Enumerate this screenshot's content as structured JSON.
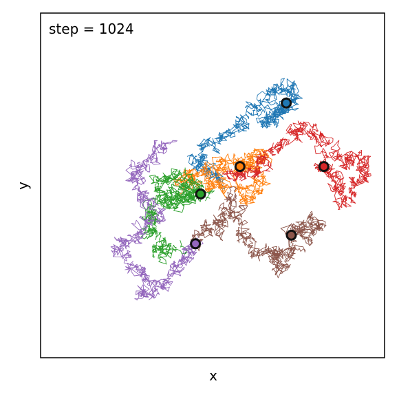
{
  "chart_data": {
    "type": "line",
    "xlabel": "x",
    "ylabel": "y",
    "annotation": "step = 1024",
    "xlim": [
      -1.0,
      1.0
    ],
    "ylim": [
      -1.0,
      1.0
    ],
    "axis_ticks": false,
    "grid": false,
    "legend": "none",
    "walk_steps": 1024,
    "series": [
      {
        "color": "#1f77b4",
        "path": [
          [
            0.04,
            0.04
          ],
          [
            -0.02,
            0.08
          ],
          [
            -0.1,
            0.14
          ],
          [
            -0.04,
            0.2
          ],
          [
            0.06,
            0.28
          ],
          [
            0.16,
            0.34
          ],
          [
            0.24,
            0.42
          ],
          [
            0.32,
            0.52
          ],
          [
            0.4,
            0.58
          ],
          [
            0.48,
            0.54
          ],
          [
            0.44,
            0.46
          ],
          [
            0.36,
            0.4
          ],
          [
            0.3,
            0.36
          ],
          [
            0.38,
            0.42
          ],
          [
            0.43,
            0.48
          ]
        ],
        "final": [
          0.43,
          0.48
        ]
      },
      {
        "color": "#ff7f0e",
        "path": [
          [
            0.16,
            0.1
          ],
          [
            0.08,
            0.14
          ],
          [
            -0.02,
            0.1
          ],
          [
            -0.12,
            0.06
          ],
          [
            -0.18,
            0.02
          ],
          [
            -0.08,
            -0.02
          ],
          [
            0.04,
            0.04
          ],
          [
            0.14,
            -0.02
          ],
          [
            0.22,
            -0.08
          ],
          [
            0.28,
            0.02
          ],
          [
            0.24,
            0.12
          ],
          [
            0.3,
            0.18
          ],
          [
            0.2,
            0.12
          ],
          [
            0.18,
            0.1
          ],
          [
            0.16,
            0.11
          ]
        ],
        "final": [
          0.16,
          0.11
        ]
      },
      {
        "color": "#2ca02c",
        "path": [
          [
            -0.2,
            -0.34
          ],
          [
            -0.3,
            -0.4
          ],
          [
            -0.36,
            -0.3
          ],
          [
            -0.32,
            -0.2
          ],
          [
            -0.36,
            -0.12
          ],
          [
            -0.26,
            -0.06
          ],
          [
            -0.3,
            0.02
          ],
          [
            -0.22,
            0.06
          ],
          [
            -0.14,
            0.02
          ],
          [
            -0.2,
            -0.04
          ],
          [
            -0.24,
            -0.1
          ],
          [
            -0.14,
            -0.08
          ],
          [
            -0.12,
            -0.04
          ],
          [
            -0.07,
            -0.05
          ]
        ],
        "final": [
          -0.07,
          -0.05
        ]
      },
      {
        "color": "#d62728",
        "path": [
          [
            0.08,
            0.06
          ],
          [
            0.18,
            0.06
          ],
          [
            0.28,
            0.12
          ],
          [
            0.36,
            0.2
          ],
          [
            0.46,
            0.28
          ],
          [
            0.54,
            0.34
          ],
          [
            0.62,
            0.3
          ],
          [
            0.7,
            0.2
          ],
          [
            0.78,
            0.14
          ],
          [
            0.86,
            0.18
          ],
          [
            0.9,
            0.08
          ],
          [
            0.84,
            -0.02
          ],
          [
            0.76,
            -0.08
          ],
          [
            0.72,
            0.02
          ],
          [
            0.66,
            0.1
          ],
          [
            0.65,
            0.11
          ]
        ],
        "final": [
          0.65,
          0.11
        ]
      },
      {
        "color": "#9467bd",
        "path": [
          [
            -0.28,
            0.26
          ],
          [
            -0.34,
            0.18
          ],
          [
            -0.42,
            0.1
          ],
          [
            -0.48,
            0.02
          ],
          [
            -0.4,
            -0.06
          ],
          [
            -0.32,
            -0.14
          ],
          [
            -0.38,
            -0.24
          ],
          [
            -0.48,
            -0.32
          ],
          [
            -0.56,
            -0.4
          ],
          [
            -0.46,
            -0.48
          ],
          [
            -0.36,
            -0.56
          ],
          [
            -0.4,
            -0.66
          ],
          [
            -0.3,
            -0.58
          ],
          [
            -0.22,
            -0.5
          ],
          [
            -0.14,
            -0.4
          ],
          [
            -0.1,
            -0.34
          ]
        ],
        "final": [
          -0.1,
          -0.34
        ]
      },
      {
        "color": "#8c564b",
        "path": [
          [
            -0.12,
            -0.36
          ],
          [
            -0.06,
            -0.28
          ],
          [
            0.02,
            -0.22
          ],
          [
            0.08,
            -0.16
          ],
          [
            0.1,
            -0.08
          ],
          [
            0.14,
            -0.18
          ],
          [
            0.18,
            -0.3
          ],
          [
            0.24,
            -0.38
          ],
          [
            0.32,
            -0.42
          ],
          [
            0.4,
            -0.4
          ],
          [
            0.38,
            -0.5
          ],
          [
            0.44,
            -0.42
          ],
          [
            0.5,
            -0.32
          ],
          [
            0.58,
            -0.26
          ],
          [
            0.62,
            -0.2
          ],
          [
            0.52,
            -0.24
          ],
          [
            0.46,
            -0.29
          ]
        ],
        "final": [
          0.46,
          -0.29
        ]
      }
    ]
  }
}
